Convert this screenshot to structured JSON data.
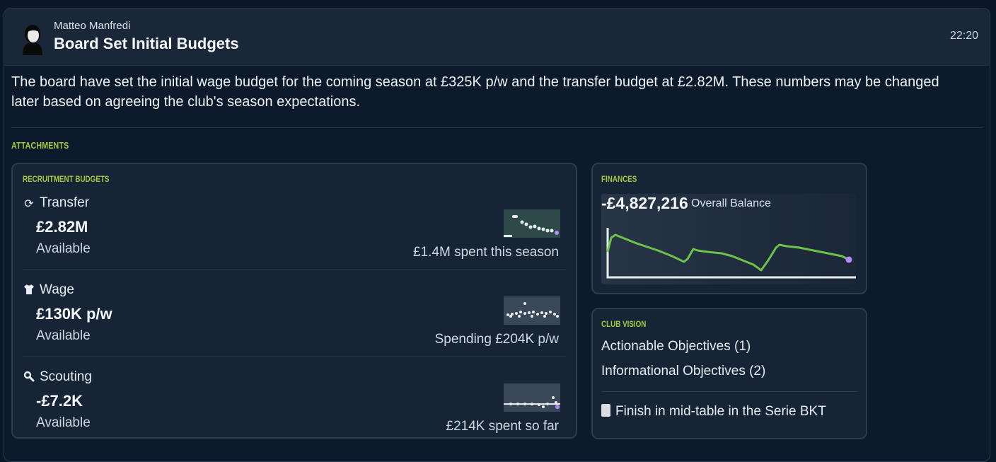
{
  "message": {
    "sender": "Matteo Manfredi",
    "subject": "Board Set Initial Budgets",
    "time": "22:20",
    "body": "The board have set the initial wage budget for the coming season at £325K p/w and the transfer budget at £2.82M. These numbers may be changed later based on agreeing the club's season expectations."
  },
  "attachments_title": "ATTACHMENTS",
  "recruitment": {
    "title": "RECRUITMENT BUDGETS",
    "rows": [
      {
        "icon": "refresh-icon",
        "name": "Transfer",
        "amount": "£2.82M",
        "status": "Available",
        "spent": "£1.4M spent this season"
      },
      {
        "icon": "shirt-icon",
        "name": "Wage",
        "amount": "£130K p/w",
        "status": "Available",
        "spent": "Spending £204K p/w"
      },
      {
        "icon": "magnifier-icon",
        "name": "Scouting",
        "amount": "-£7.2K",
        "status": "Available",
        "spent": "£214K spent so far"
      }
    ]
  },
  "finances": {
    "title": "FINANCES",
    "balance": "-£4,827,216",
    "balance_label": "Overall Balance",
    "line_color": "#6cc24a",
    "end_marker_color": "#b48cf0"
  },
  "vision": {
    "title": "CLUB VISION",
    "actionable": "Actionable Objectives (1)",
    "informational": "Informational Objectives (2)",
    "goal": "Finish in mid-table in the Serie BKT"
  },
  "colors": {
    "accent": "#a6c93c",
    "background": "#0d1a2b",
    "card": "#172436"
  }
}
